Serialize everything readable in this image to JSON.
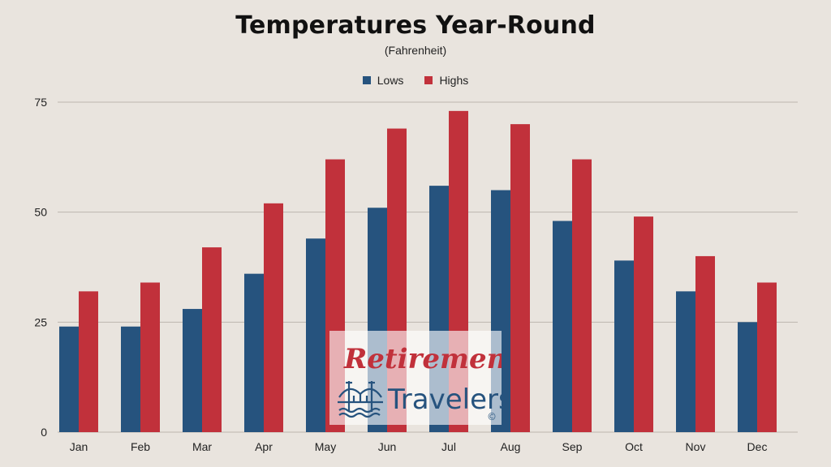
{
  "chart_data": {
    "type": "bar",
    "title": "Temperatures Year-Round",
    "subtitle": "(Fahrenheit)",
    "xlabel": "",
    "ylabel": "",
    "categories": [
      "Jan",
      "Feb",
      "Mar",
      "Apr",
      "May",
      "Jun",
      "Jul",
      "Aug",
      "Sep",
      "Oct",
      "Nov",
      "Dec"
    ],
    "series": [
      {
        "name": "Lows",
        "color": "#26537e",
        "values": [
          24,
          24,
          28,
          36,
          44,
          51,
          56,
          55,
          48,
          39,
          32,
          25
        ]
      },
      {
        "name": "Highs",
        "color": "#c1313b",
        "values": [
          32,
          34,
          42,
          52,
          62,
          69,
          73,
          70,
          62,
          49,
          40,
          34
        ]
      }
    ],
    "ylim": [
      0,
      75
    ],
    "yticks": [
      0,
      25,
      50,
      75
    ],
    "grid": true,
    "legend_position": "top-center"
  },
  "watermark": {
    "line1": "Retirement",
    "line2": "Travelers",
    "mark": "©",
    "icon": "bridge-icon",
    "color_primary": "#c1313b",
    "color_secondary": "#26537e"
  }
}
